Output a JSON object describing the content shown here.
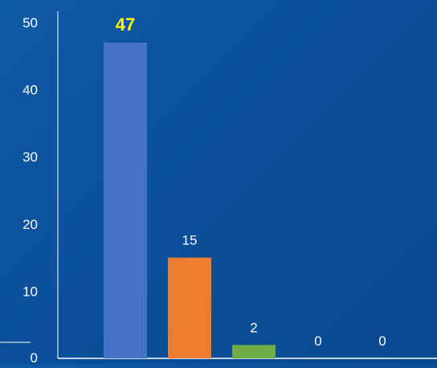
{
  "chart_data": {
    "type": "bar",
    "categories": [
      "",
      "",
      "",
      "",
      ""
    ],
    "values": [
      47,
      15,
      2,
      0,
      0
    ],
    "data_labels": [
      "47",
      "15",
      "2",
      "0",
      "0"
    ],
    "y_ticks": [
      "0",
      "10",
      "20",
      "30",
      "40",
      "50"
    ],
    "ylim": [
      0,
      50
    ],
    "colors": [
      "#4472c4",
      "#ed7d31",
      "#70ad47",
      "#ffc000",
      "#5b9bd5"
    ],
    "highlight_label_color": "#ffff00",
    "label_color": "#ffffff",
    "axis_color": "#ffffff",
    "grid": false,
    "legend": "none"
  }
}
